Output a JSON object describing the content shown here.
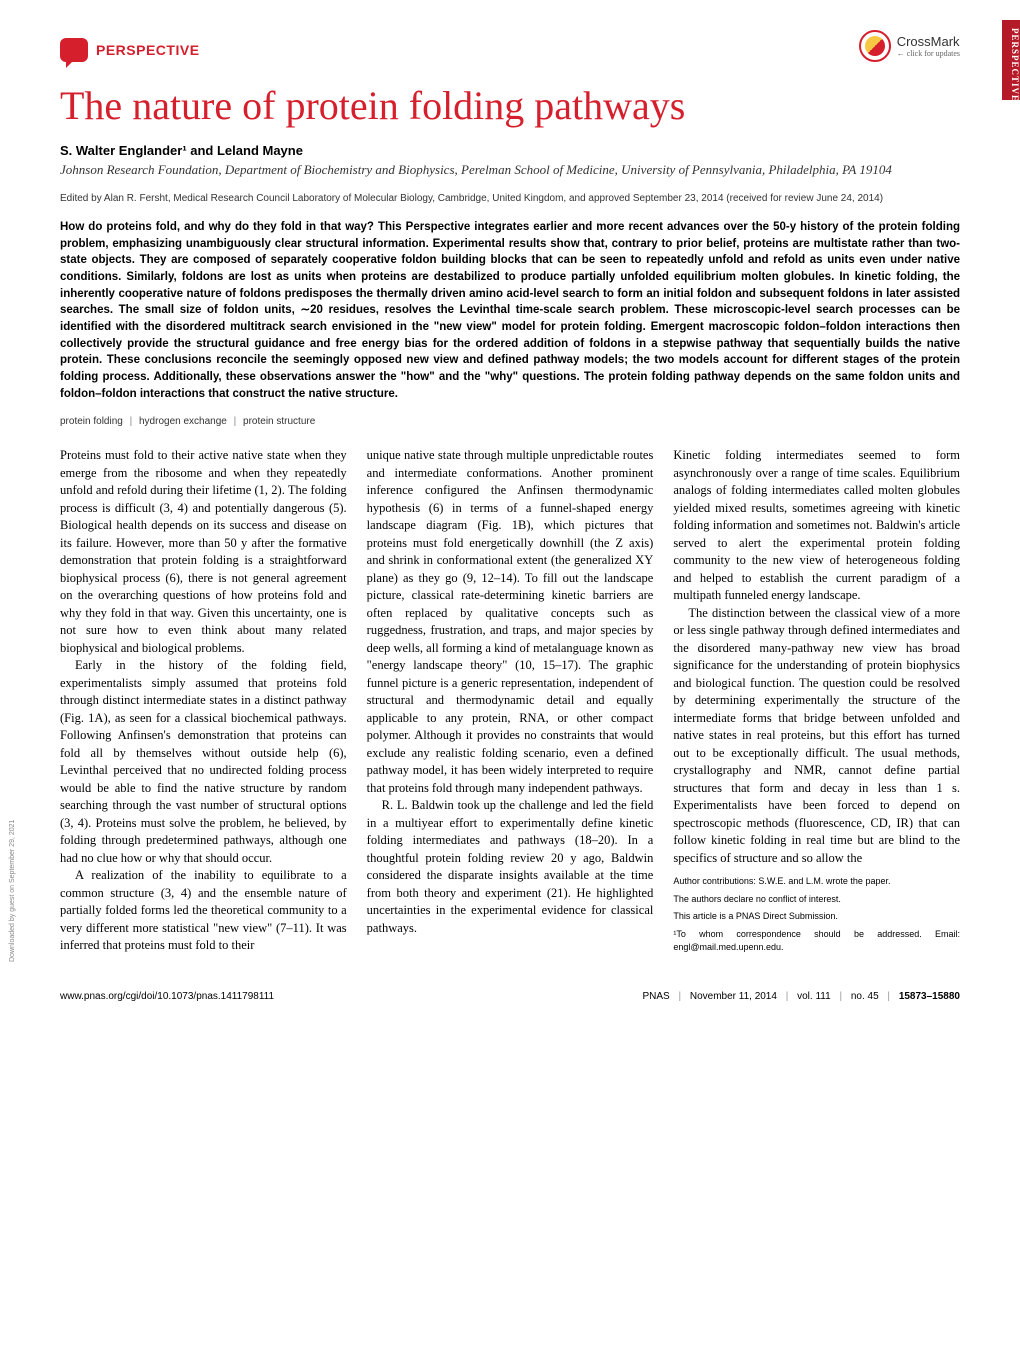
{
  "side_tab": "PERSPECTIVE",
  "header": {
    "label": "PERSPECTIVE",
    "crossmark": "CrossMark",
    "crossmark_sub": "← click for updates"
  },
  "title": "The nature of protein folding pathways",
  "authors": "S. Walter Englander¹ and Leland Mayne",
  "affiliation": "Johnson Research Foundation, Department of Biochemistry and Biophysics, Perelman School of Medicine, University of Pennsylvania, Philadelphia, PA 19104",
  "editor_line": "Edited by Alan R. Fersht, Medical Research Council Laboratory of Molecular Biology, Cambridge, United Kingdom, and approved September 23, 2014 (received for review June 24, 2014)",
  "abstract": "How do proteins fold, and why do they fold in that way? This Perspective integrates earlier and more recent advances over the 50-y history of the protein folding problem, emphasizing unambiguously clear structural information. Experimental results show that, contrary to prior belief, proteins are multistate rather than two-state objects. They are composed of separately cooperative foldon building blocks that can be seen to repeatedly unfold and refold as units even under native conditions. Similarly, foldons are lost as units when proteins are destabilized to produce partially unfolded equilibrium molten globules. In kinetic folding, the inherently cooperative nature of foldons predisposes the thermally driven amino acid-level search to form an initial foldon and subsequent foldons in later assisted searches. The small size of foldon units, ∼20 residues, resolves the Levinthal time-scale search problem. These microscopic-level search processes can be identified with the disordered multitrack search envisioned in the \"new view\" model for protein folding. Emergent macroscopic foldon–foldon interactions then collectively provide the structural guidance and free energy bias for the ordered addition of foldons in a stepwise pathway that sequentially builds the native protein. These conclusions reconcile the seemingly opposed new view and defined pathway models; the two models account for different stages of the protein folding process. Additionally, these observations answer the \"how\" and the \"why\" questions. The protein folding pathway depends on the same foldon units and foldon–foldon interactions that construct the native structure.",
  "keywords": {
    "k1": "protein folding",
    "k2": "hydrogen exchange",
    "k3": "protein structure"
  },
  "body": {
    "col1": {
      "p1": "Proteins must fold to their active native state when they emerge from the ribosome and when they repeatedly unfold and refold during their lifetime (1, 2). The folding process is difficult (3, 4) and potentially dangerous (5). Biological health depends on its success and disease on its failure. However, more than 50 y after the formative demonstration that protein folding is a straightforward biophysical process (6), there is not general agreement on the overarching questions of how proteins fold and why they fold in that way. Given this uncertainty, one is not sure how to even think about many related biophysical and biological problems.",
      "p2": "Early in the history of the folding field, experimentalists simply assumed that proteins fold through distinct intermediate states in a distinct pathway (Fig. 1A), as seen for a classical biochemical pathways. Following Anfinsen's demonstration that proteins can fold all by themselves without outside help (6), Levinthal perceived that no undirected folding process would be able to find the native structure by random searching through the vast number of structural options (3, 4). Proteins must solve the problem, he believed, by folding through predetermined pathways, although one had no clue how or why that should occur.",
      "p3": "A realization of the inability to equilibrate to a common structure (3, 4) and the ensemble nature of partially folded forms led the theoretical community to a very different more statistical \"new view\" (7–11). It was inferred that proteins must fold to their"
    },
    "col2": {
      "p1": "unique native state through multiple unpredictable routes and intermediate conformations. Another prominent inference configured the Anfinsen thermodynamic hypothesis (6) in terms of a funnel-shaped energy landscape diagram (Fig. 1B), which pictures that proteins must fold energetically downhill (the Z axis) and shrink in conformational extent (the generalized XY plane) as they go (9, 12–14). To fill out the landscape picture, classical rate-determining kinetic barriers are often replaced by qualitative concepts such as ruggedness, frustration, and traps, and major species by deep wells, all forming a kind of metalanguage known as \"energy landscape theory\" (10, 15–17). The graphic funnel picture is a generic representation, independent of structural and thermodynamic detail and equally applicable to any protein, RNA, or other compact polymer. Although it provides no constraints that would exclude any realistic folding scenario, even a defined pathway model, it has been widely interpreted to require that proteins fold through many independent pathways.",
      "p2": "R. L. Baldwin took up the challenge and led the field in a multiyear effort to experimentally define kinetic folding intermediates and pathways (18–20). In a thoughtful protein folding review 20 y ago, Baldwin considered the disparate insights available at the time from both theory and experiment (21). He highlighted uncertainties in the experimental evidence for classical pathways."
    },
    "col3": {
      "p1": "Kinetic folding intermediates seemed to form asynchronously over a range of time scales. Equilibrium analogs of folding intermediates called molten globules yielded mixed results, sometimes agreeing with kinetic folding information and sometimes not. Baldwin's article served to alert the experimental protein folding community to the new view of heterogeneous folding and helped to establish the current paradigm of a multipath funneled energy landscape.",
      "p2": "The distinction between the classical view of a more or less single pathway through defined intermediates and the disordered many-pathway new view has broad significance for the understanding of protein biophysics and biological function. The question could be resolved by determining experimentally the structure of the intermediate forms that bridge between unfolded and native states in real proteins, but this effort has turned out to be exceptionally difficult. The usual methods, crystallography and NMR, cannot define partial structures that form and decay in less than 1 s. Experimentalists have been forced to depend on spectroscopic methods (fluorescence, CD, IR) that can follow kinetic folding in real time but are blind to the specifics of structure and so allow the"
    },
    "notes": {
      "n1": "Author contributions: S.W.E. and L.M. wrote the paper.",
      "n2": "The authors declare no conflict of interest.",
      "n3": "This article is a PNAS Direct Submission.",
      "n4": "¹To whom correspondence should be addressed. Email: engl@mail.med.upenn.edu."
    }
  },
  "footer": {
    "doi": "www.pnas.org/cgi/doi/10.1073/pnas.1411798111",
    "journal": "PNAS",
    "date": "November 11, 2014",
    "vol": "vol. 111",
    "no": "no. 45",
    "pages": "15873–15880"
  },
  "download_note": "Downloaded by guest on September 29, 2021",
  "colors": {
    "accent": "#d61f2c",
    "tab": "#b51a29",
    "text": "#1a1a1a"
  }
}
